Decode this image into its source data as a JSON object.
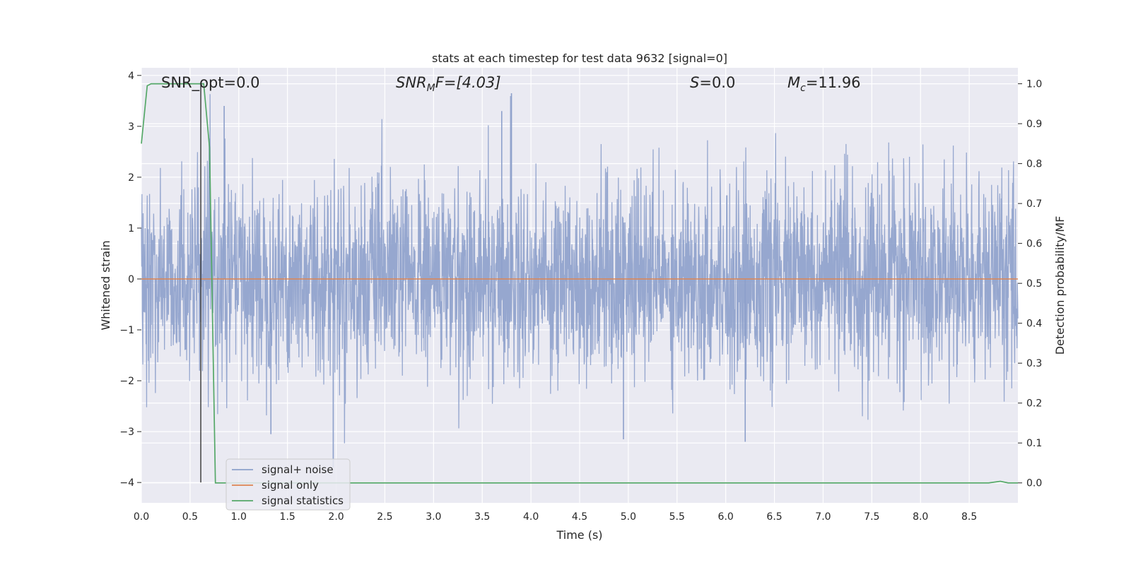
{
  "chart_data": {
    "type": "line",
    "title": "stats at each timestep for test data 9632 [signal=0]",
    "xlabel": "Time (s)",
    "ylabel_left": "Whitened strain",
    "ylabel_right": "Detection probability/MF",
    "xlim": [
      0.0,
      9.0
    ],
    "ylim_left": [
      -4.4,
      4.15
    ],
    "ylim_right": [
      -0.05,
      1.04
    ],
    "x_ticks": [
      "0.0",
      "0.5",
      "1.0",
      "1.5",
      "2.0",
      "2.5",
      "3.0",
      "3.5",
      "4.0",
      "4.5",
      "5.0",
      "5.5",
      "6.0",
      "6.5",
      "7.0",
      "7.5",
      "8.0",
      "8.5"
    ],
    "y_left_ticks": [
      "4",
      "3",
      "2",
      "1",
      "0",
      "−1",
      "−2",
      "−3",
      "−4"
    ],
    "y_right_ticks": [
      "1.0",
      "0.9",
      "0.8",
      "0.7",
      "0.6",
      "0.5",
      "0.4",
      "0.3",
      "0.2",
      "0.1",
      "0.0"
    ],
    "grid": true,
    "legend_position": "lower-left",
    "annotations": {
      "snr_opt": "SNR_opt=0.0",
      "snr_mf_main": "SNR",
      "snr_mf_sub": "M",
      "snr_mf_rest": "F=[4.03]",
      "s_main": "S",
      "s_rest": "=0.0",
      "mc_main": "M",
      "mc_sub": "c",
      "mc_rest": "=11.96"
    },
    "series": [
      {
        "name": "signal+ noise",
        "color": "#8da0cb",
        "axis": "left",
        "description_values": {
          "x_range": [
            0.0,
            9.0
          ],
          "approx_envelope": [
            -3.5,
            3.8
          ],
          "notable_peaks": [
            {
              "x": 3.8,
              "y": 3.65
            },
            {
              "x": 3.7,
              "y": 3.3
            },
            {
              "x": 0.85,
              "y": 3.4
            },
            {
              "x": 1.97,
              "y": -3.7
            },
            {
              "x": 4.95,
              "y": -3.15
            },
            {
              "x": 6.2,
              "y": -3.2
            },
            {
              "x": 1.33,
              "y": -3.05
            }
          ]
        }
      },
      {
        "name": "signal only",
        "color": "#dd8452",
        "axis": "left",
        "x": [
          0.0,
          9.0
        ],
        "y": [
          0.0,
          0.0
        ]
      },
      {
        "name": "signal statistics",
        "color": "#55a868",
        "axis": "right",
        "x": [
          0.0,
          0.06,
          0.1,
          0.2,
          0.3,
          0.4,
          0.5,
          0.6,
          0.64,
          0.7,
          0.76,
          1.0,
          2.0,
          3.0,
          4.0,
          5.0,
          6.0,
          7.0,
          8.0,
          8.7,
          8.82,
          8.9,
          9.0
        ],
        "y": [
          0.85,
          0.995,
          1.0,
          1.0,
          1.0,
          1.0,
          1.0,
          1.0,
          1.0,
          0.84,
          0.0,
          0.0,
          0.0,
          0.0,
          0.0,
          0.0,
          0.0,
          0.0,
          0.0,
          0.0,
          0.004,
          0.0,
          0.0
        ]
      }
    ],
    "marker_line": {
      "x": 0.61,
      "y_left_range": [
        -4.0,
        3.85
      ],
      "color": "#333333"
    }
  }
}
